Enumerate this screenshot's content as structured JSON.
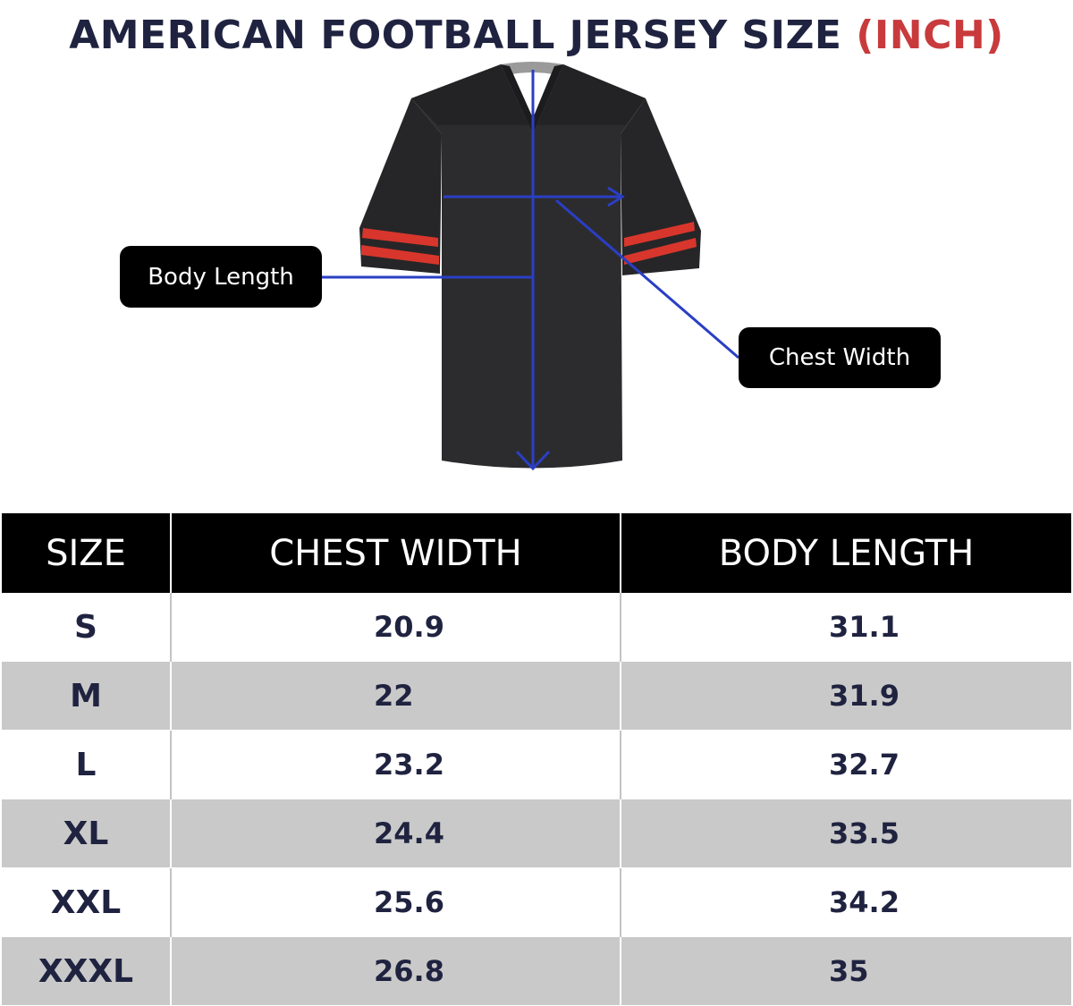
{
  "title": {
    "main": "AMERICAN FOOTBALL JERSEY SIZE",
    "unit": "(INCH)"
  },
  "callouts": {
    "body_length": "Body Length",
    "chest_width": "Chest Width"
  },
  "colors": {
    "title": "#1f2340",
    "unit": "#c83a3c",
    "measure_line": "#2a3fc4",
    "jersey": "#2a2a2c",
    "stripe": "#d8362c"
  },
  "table": {
    "headers": [
      "SIZE",
      "CHEST WIDTH",
      "BODY LENGTH"
    ],
    "rows": [
      {
        "size": "S",
        "chest": "20.9",
        "body": "31.1"
      },
      {
        "size": "M",
        "chest": "22",
        "body": "31.9"
      },
      {
        "size": "L",
        "chest": "23.2",
        "body": "32.7"
      },
      {
        "size": "XL",
        "chest": "24.4",
        "body": "33.5"
      },
      {
        "size": "XXL",
        "chest": "25.6",
        "body": "34.2"
      },
      {
        "size": "XXXL",
        "chest": "26.8",
        "body": "35"
      }
    ]
  }
}
